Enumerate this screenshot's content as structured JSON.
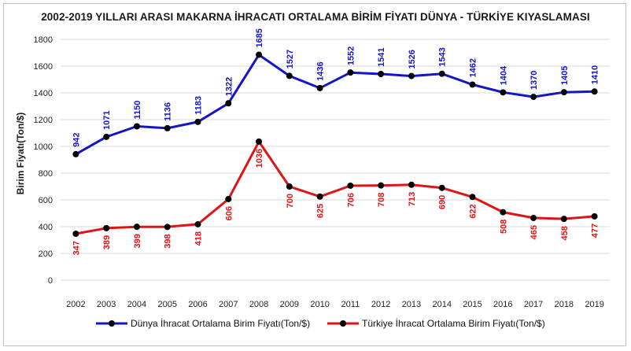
{
  "chart_data": {
    "type": "line",
    "title": "2002-2019 YILLARI ARASI MAKARNA İHRACATI ORTALAMA BİRİM FİYATI DÜNYA - TÜRKİYE KIYASLAMASI",
    "xlabel": "",
    "ylabel": "Birim Fiyatı(Ton/$)",
    "categories": [
      "2002",
      "2003",
      "2004",
      "2005",
      "2006",
      "2007",
      "2008",
      "2009",
      "2010",
      "2011",
      "2012",
      "2013",
      "2014",
      "2015",
      "2016",
      "2017",
      "2018",
      "2019"
    ],
    "ylim": [
      0,
      1800
    ],
    "yticks": [
      0,
      200,
      400,
      600,
      800,
      1000,
      1200,
      1400,
      1600,
      1800
    ],
    "grid": true,
    "legend_position": "bottom",
    "series": [
      {
        "name": "Dünya İhracat Ortalama Birim Fiyatı(Ton/$)",
        "color": "#1414c8",
        "label_position": "above",
        "values": [
          942,
          1071,
          1150,
          1136,
          1183,
          1322,
          1685,
          1527,
          1436,
          1552,
          1541,
          1526,
          1543,
          1462,
          1404,
          1370,
          1405,
          1410
        ]
      },
      {
        "name": "Türkiye İhracat Ortalama Birim Fiyatı(Ton/$)",
        "color": "#e01414",
        "label_position": "below",
        "values": [
          347,
          389,
          399,
          398,
          418,
          606,
          1036,
          700,
          625,
          706,
          708,
          713,
          690,
          622,
          508,
          465,
          458,
          477
        ]
      }
    ]
  }
}
